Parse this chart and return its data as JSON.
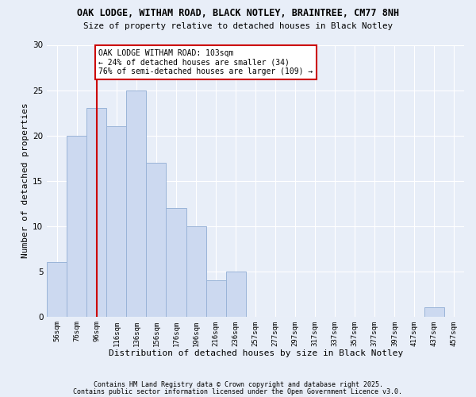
{
  "title1": "OAK LODGE, WITHAM ROAD, BLACK NOTLEY, BRAINTREE, CM77 8NH",
  "title2": "Size of property relative to detached houses in Black Notley",
  "xlabel": "Distribution of detached houses by size in Black Notley",
  "ylabel": "Number of detached properties",
  "bar_labels": [
    "56sqm",
    "76sqm",
    "96sqm",
    "116sqm",
    "136sqm",
    "156sqm",
    "176sqm",
    "196sqm",
    "216sqm",
    "236sqm",
    "257sqm",
    "277sqm",
    "297sqm",
    "317sqm",
    "337sqm",
    "357sqm",
    "377sqm",
    "397sqm",
    "417sqm",
    "437sqm",
    "457sqm"
  ],
  "bar_values": [
    6,
    20,
    23,
    21,
    25,
    17,
    12,
    10,
    4,
    5,
    0,
    0,
    0,
    0,
    0,
    0,
    0,
    0,
    0,
    1,
    0
  ],
  "bar_color": "#ccd9f0",
  "bar_edge_color": "#9ab4d8",
  "ylim": [
    0,
    30
  ],
  "yticks": [
    0,
    5,
    10,
    15,
    20,
    25,
    30
  ],
  "vline_x": 2.0,
  "annotation_text": "OAK LODGE WITHAM ROAD: 103sqm\n← 24% of detached houses are smaller (34)\n76% of semi-detached houses are larger (109) →",
  "annotation_box_color": "#ffffff",
  "annotation_box_edge_color": "#cc0000",
  "vline_color": "#cc0000",
  "footer1": "Contains HM Land Registry data © Crown copyright and database right 2025.",
  "footer2": "Contains public sector information licensed under the Open Government Licence v3.0.",
  "background_color": "#e8eef8",
  "grid_color": "#ffffff"
}
